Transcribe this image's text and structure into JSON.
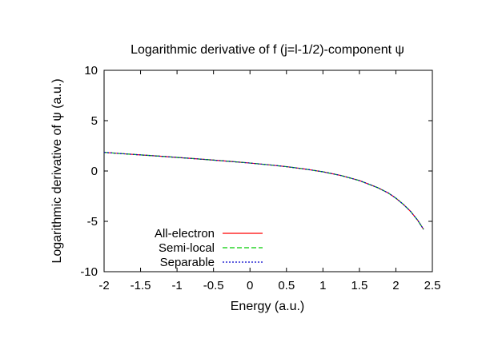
{
  "chart_data": {
    "type": "line",
    "title": "Logarithmic derivative of f (j=l-1/2)-component ψ",
    "xlabel": "Energy (a.u.)",
    "ylabel": "Logarithmic derivative of ψ (a.u.)",
    "xlim": [
      -2,
      2.5
    ],
    "ylim": [
      -10,
      10
    ],
    "x_ticks": [
      -2,
      -1.5,
      -1,
      -0.5,
      0,
      0.5,
      1,
      1.5,
      2,
      2.5
    ],
    "x_tick_labels": [
      "-2",
      "-1.5",
      "-1",
      "-0.5",
      "0",
      "0.5",
      "1",
      "1.5",
      "2",
      "2.5"
    ],
    "y_ticks": [
      -10,
      -5,
      0,
      5,
      10
    ],
    "y_tick_labels": [
      "-10",
      "-5",
      "0",
      "5",
      "10"
    ],
    "grid": false,
    "legend_position": "bottom-left",
    "series": [
      {
        "name": "All-electron",
        "color": "#ff0000",
        "style": "solid",
        "x": [
          -2.0,
          -1.75,
          -1.5,
          -1.25,
          -1.0,
          -0.75,
          -0.5,
          -0.25,
          0.0,
          0.25,
          0.5,
          0.75,
          1.0,
          1.25,
          1.5,
          1.75,
          1.9,
          2.0,
          2.1,
          2.2,
          2.3,
          2.38
        ],
        "y": [
          1.85,
          1.72,
          1.6,
          1.48,
          1.35,
          1.22,
          1.08,
          0.94,
          0.79,
          0.62,
          0.43,
          0.2,
          -0.08,
          -0.45,
          -0.95,
          -1.65,
          -2.2,
          -2.7,
          -3.3,
          -4.0,
          -4.9,
          -5.8
        ]
      },
      {
        "name": "Semi-local",
        "color": "#00cc00",
        "style": "dashed",
        "x": [
          -2.0,
          -1.75,
          -1.5,
          -1.25,
          -1.0,
          -0.75,
          -0.5,
          -0.25,
          0.0,
          0.25,
          0.5,
          0.75,
          1.0,
          1.25,
          1.5,
          1.75,
          1.9,
          2.0,
          2.1,
          2.2,
          2.3,
          2.38
        ],
        "y": [
          1.85,
          1.72,
          1.6,
          1.48,
          1.35,
          1.22,
          1.08,
          0.94,
          0.79,
          0.62,
          0.43,
          0.2,
          -0.08,
          -0.45,
          -0.95,
          -1.65,
          -2.2,
          -2.7,
          -3.3,
          -4.0,
          -4.9,
          -5.8
        ]
      },
      {
        "name": "Separable",
        "color": "#0000cc",
        "style": "dotted",
        "x": [
          -2.0,
          -1.75,
          -1.5,
          -1.25,
          -1.0,
          -0.75,
          -0.5,
          -0.25,
          0.0,
          0.25,
          0.5,
          0.75,
          1.0,
          1.25,
          1.5,
          1.75,
          1.9,
          2.0,
          2.1,
          2.2,
          2.3,
          2.38
        ],
        "y": [
          1.85,
          1.72,
          1.6,
          1.48,
          1.35,
          1.22,
          1.08,
          0.94,
          0.79,
          0.62,
          0.43,
          0.2,
          -0.08,
          -0.45,
          -0.95,
          -1.65,
          -2.2,
          -2.7,
          -3.3,
          -4.0,
          -4.9,
          -5.8
        ]
      }
    ]
  }
}
